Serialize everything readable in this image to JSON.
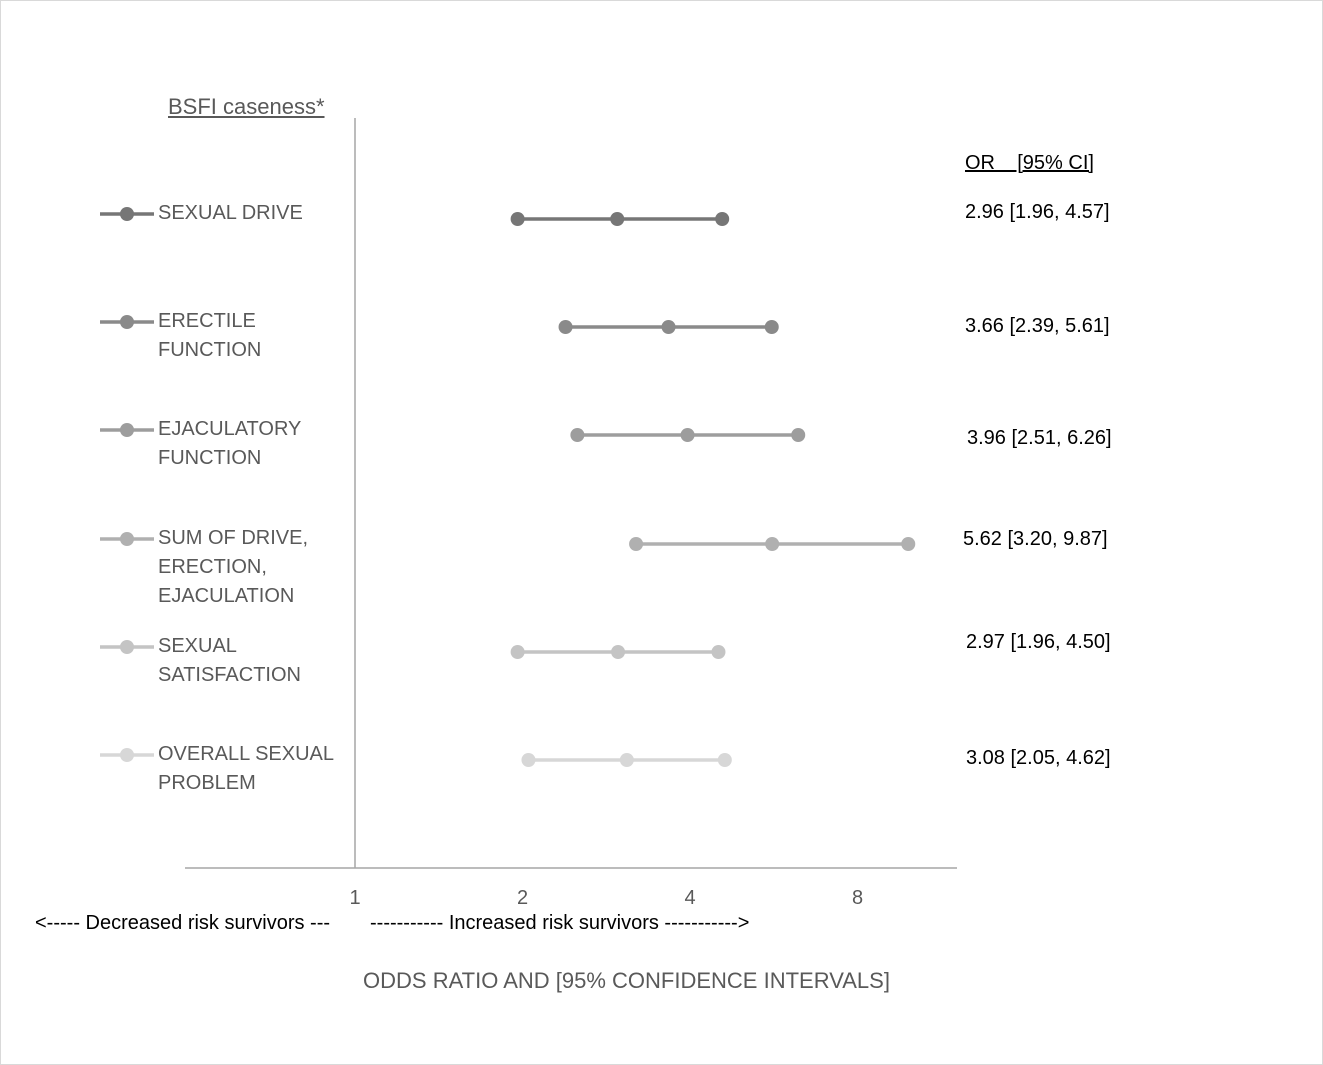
{
  "chart_data": {
    "type": "forest",
    "legend_title": "BSFI caseness*",
    "column_header": "OR    [95% CI]",
    "xlabel": "ODDS RATIO AND [95% CONFIDENCE INTERVALS]",
    "x_scale": "log2",
    "xlim": [
      0.5,
      12
    ],
    "xticks": [
      "1",
      "2",
      "4",
      "8"
    ],
    "direction_left": "<----- Decreased risk survivors ---",
    "direction_right": "----------- Increased risk survivors ----------->",
    "series": [
      {
        "name": "SEXUAL DRIVE",
        "or": 2.96,
        "lower": 1.96,
        "upper": 4.57,
        "label": "2.96 [1.96, 4.57]",
        "color": "#767676"
      },
      {
        "name": "ERECTILE FUNCTION",
        "or": 3.66,
        "lower": 2.39,
        "upper": 5.61,
        "label": "3.66 [2.39, 5.61]",
        "color": "#8a8a8a"
      },
      {
        "name": "EJACULATORY FUNCTION",
        "or": 3.96,
        "lower": 2.51,
        "upper": 6.26,
        "label": "3.96 [2.51, 6.26]",
        "color": "#9d9d9d"
      },
      {
        "name": "SUM OF DRIVE, ERECTION, EJACULATION",
        "or": 5.62,
        "lower": 3.2,
        "upper": 9.87,
        "label": "5.62 [3.20, 9.87]",
        "color": "#b0b0b0"
      },
      {
        "name": "SEXUAL SATISFACTION",
        "or": 2.97,
        "lower": 1.96,
        "upper": 4.5,
        "label": "2.97 [1.96, 4.50]",
        "color": "#c4c4c4"
      },
      {
        "name": "OVERALL SEXUAL PROBLEM",
        "or": 3.08,
        "lower": 2.05,
        "upper": 4.62,
        "label": "3.08 [2.05, 4.62]",
        "color": "#d7d7d7"
      }
    ]
  }
}
